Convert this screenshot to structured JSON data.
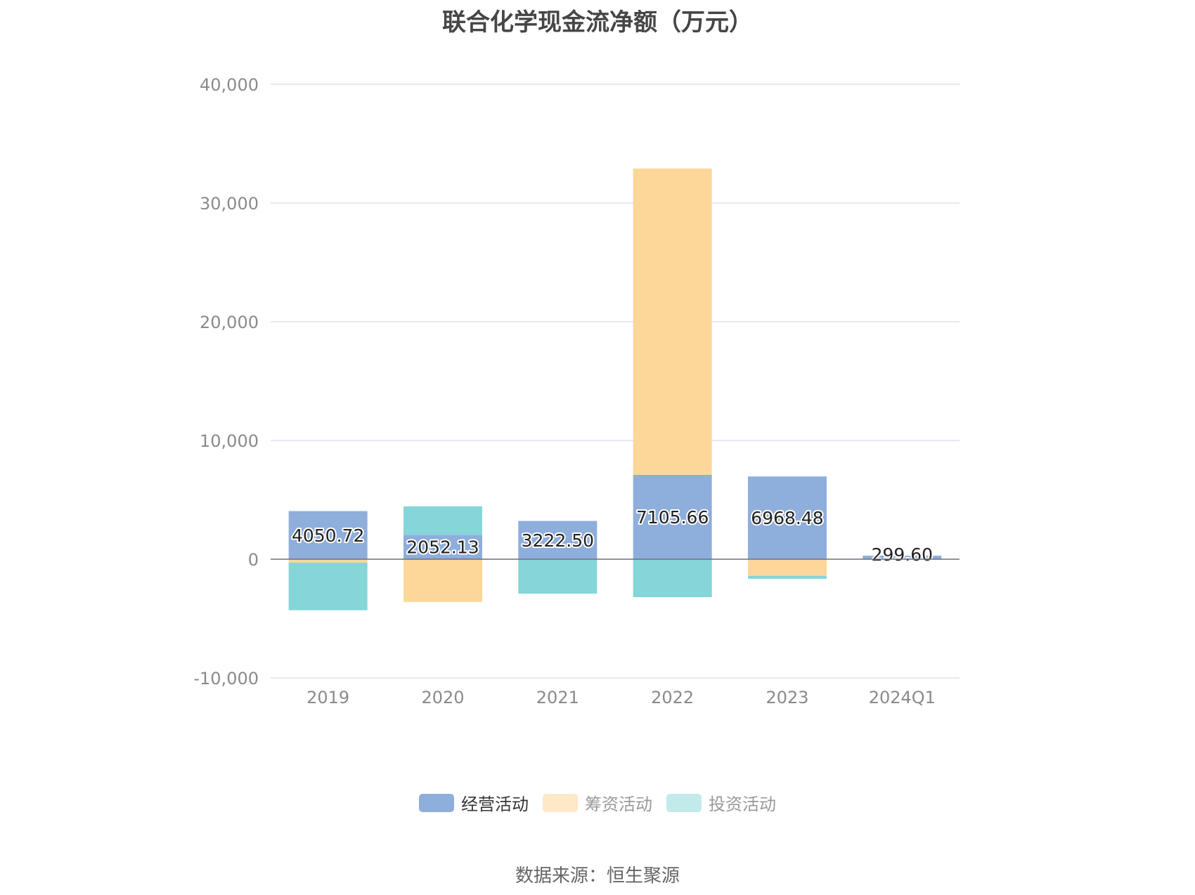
{
  "chart_data": {
    "type": "bar",
    "stacked": true,
    "title": "联合化学现金流净额（万元）",
    "categories": [
      "2019",
      "2020",
      "2021",
      "2022",
      "2023",
      "2024Q1"
    ],
    "ylim": [
      -10000,
      40000
    ],
    "yticks": [
      -10000,
      0,
      10000,
      20000,
      30000,
      40000
    ],
    "ytick_labels": [
      "-10,000",
      "0",
      "10,000",
      "20,000",
      "30,000",
      "40,000"
    ],
    "grid": true,
    "legend_position": "bottom",
    "series": [
      {
        "name": "经营活动",
        "color": "#8eaedc",
        "values": [
          4050.72,
          2052.13,
          3222.5,
          7105.66,
          6968.48,
          299.6
        ],
        "labels": [
          "4050.72",
          "2052.13",
          "3222.50",
          "7105.66",
          "6968.48",
          "299.60"
        ]
      },
      {
        "name": "筹资活动",
        "color": "#fdd79a",
        "values": [
          -300,
          -3600,
          0,
          25800,
          -1400,
          0
        ]
      },
      {
        "name": "投资活动",
        "color": "#86d5d8",
        "values": [
          -4000,
          2400,
          -2900,
          -3200,
          -250,
          0
        ]
      }
    ]
  },
  "legend": [
    {
      "label": "经营活动",
      "color": "#8eaedc",
      "active": true
    },
    {
      "label": "筹资活动",
      "color": "#fde8c8",
      "active": false
    },
    {
      "label": "投资活动",
      "color": "#c3eaea",
      "active": false
    }
  ],
  "source": "数据来源：恒生聚源"
}
